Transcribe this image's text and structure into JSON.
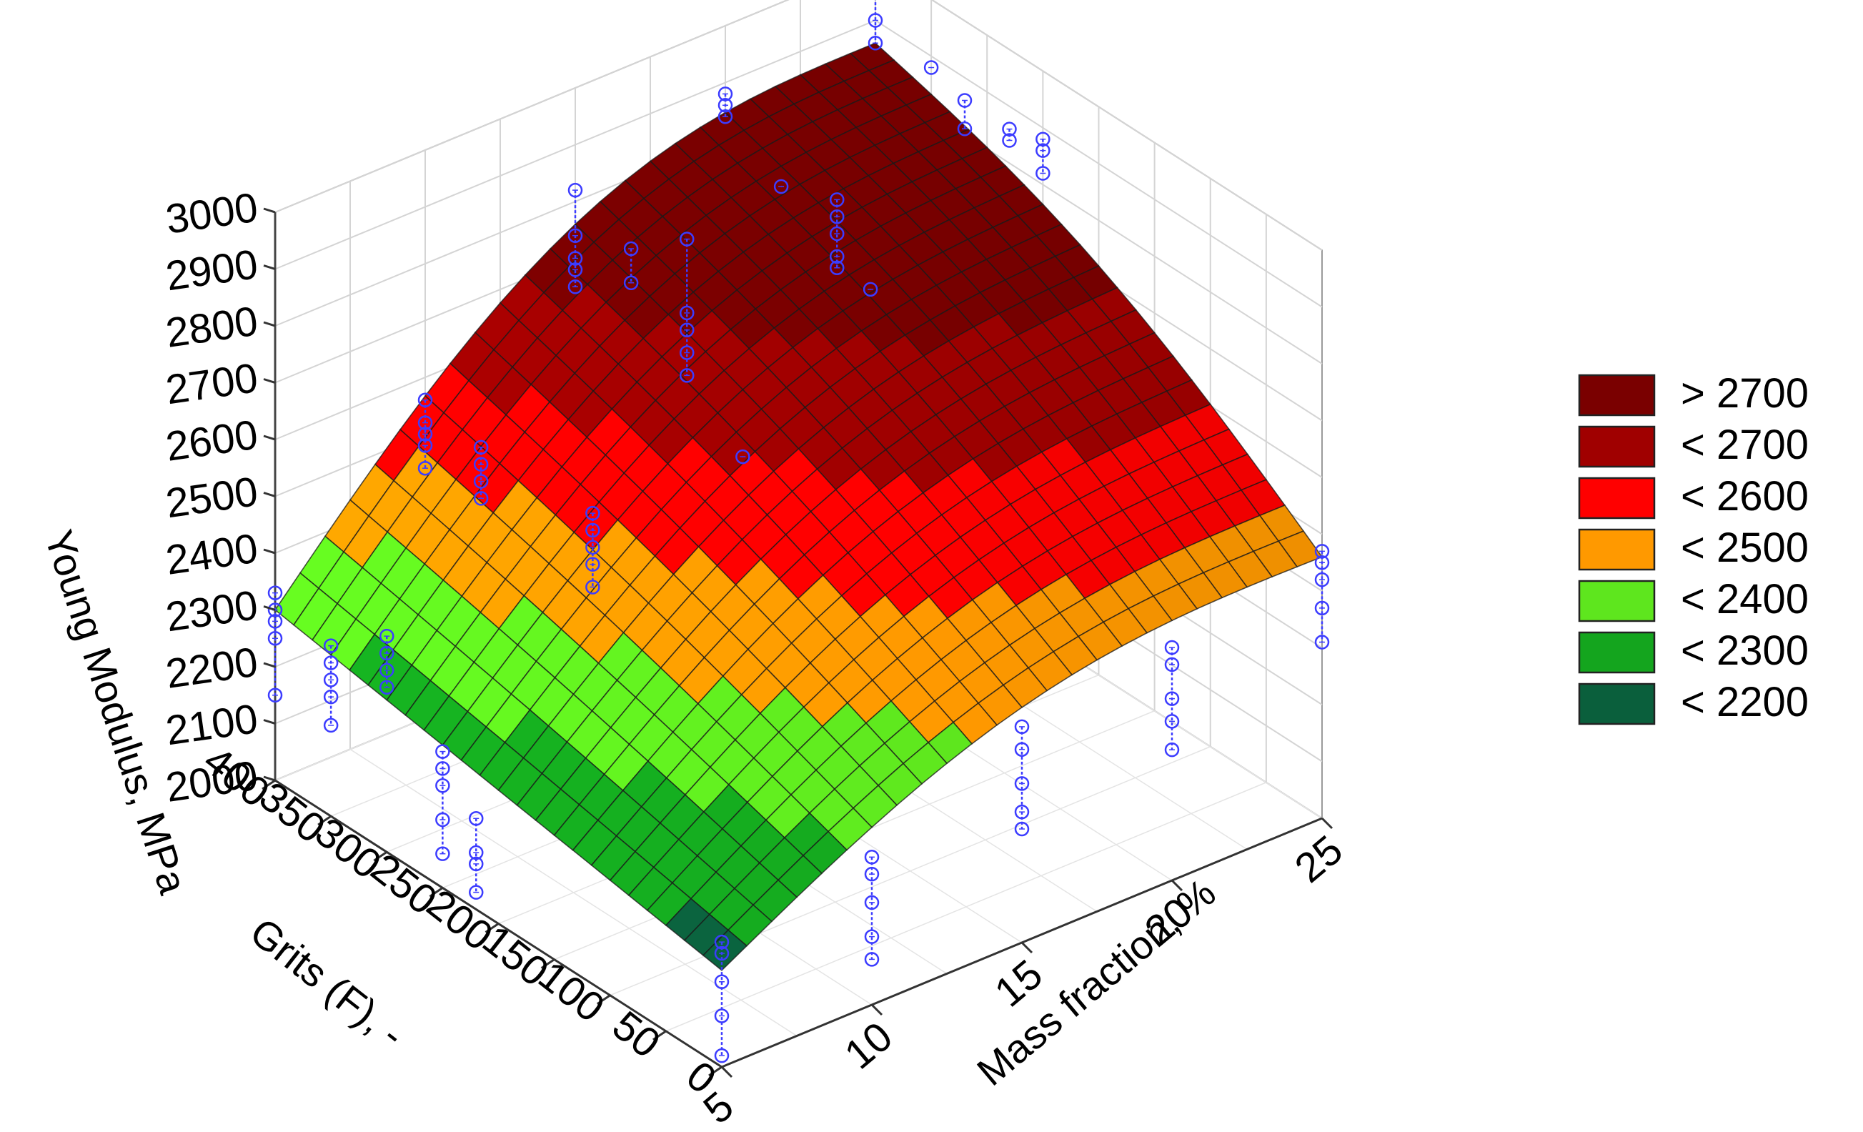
{
  "chart_data": {
    "type": "surface3d",
    "z_axis": {
      "label": "Young Modulus, MPa",
      "range": [
        2000,
        3000
      ],
      "ticks": [
        "2000",
        "2100",
        "2200",
        "2300",
        "2400",
        "2500",
        "2600",
        "2700",
        "2800",
        "2900",
        "3000"
      ]
    },
    "grits_axis": {
      "label": "Grits (F), -",
      "range": [
        0,
        400
      ],
      "ticks": [
        "0",
        "50",
        "100",
        "150",
        "200",
        "250",
        "300",
        "350",
        "400"
      ]
    },
    "mass_axis": {
      "label": "Mass fraction, %",
      "range": [
        5,
        25
      ],
      "ticks": [
        "5",
        "10",
        "15",
        "20",
        "25"
      ]
    },
    "corner_values": [
      {
        "grits": 400,
        "mass": 5,
        "young_modulus": 2300
      },
      {
        "grits": 0,
        "mass": 5,
        "young_modulus": 2170
      },
      {
        "grits": 400,
        "mass": 25,
        "young_modulus": 2860
      },
      {
        "grits": 0,
        "mass": 25,
        "young_modulus": 2460
      }
    ],
    "legend": [
      {
        "label": "> 2700",
        "color": "#7a0000"
      },
      {
        "label": "< 2700",
        "color": "#a00000"
      },
      {
        "label": "< 2600",
        "color": "#ff0000"
      },
      {
        "label": "< 2500",
        "color": "#ff9900"
      },
      {
        "label": "< 2400",
        "color": "#5ee61e"
      },
      {
        "label": "< 2300",
        "color": "#14a51e"
      },
      {
        "label": "< 2200",
        "color": "#0a5f3c"
      }
    ],
    "observation_color": "#3c3cff",
    "observations": [
      {
        "grits": 400,
        "mass": 5,
        "values": [
          2330,
          2300,
          2280,
          2250,
          2150
        ]
      },
      {
        "grits": 350,
        "mass": 5,
        "values": [
          2300,
          2270,
          2240,
          2210,
          2160
        ]
      },
      {
        "grits": 300,
        "mass": 5,
        "values": [
          2380,
          2350,
          2320,
          2290
        ]
      },
      {
        "grits": 250,
        "mass": 5,
        "values": [
          2240,
          2210,
          2180,
          2120,
          2060
        ]
      },
      {
        "grits": 220,
        "mass": 5,
        "values": [
          2160,
          2100,
          2080,
          2030
        ]
      },
      {
        "grits": 400,
        "mass": 10,
        "values": [
          2560,
          2520,
          2500,
          2480,
          2440
        ]
      },
      {
        "grits": 350,
        "mass": 10,
        "values": [
          2540,
          2510,
          2480,
          2450
        ]
      },
      {
        "grits": 250,
        "mass": 10,
        "values": [
          2550,
          2520,
          2490,
          2460,
          2420
        ]
      },
      {
        "grits": 400,
        "mass": 15,
        "values": [
          2820,
          2740,
          2700,
          2680,
          2650
        ]
      },
      {
        "grits": 350,
        "mass": 15,
        "values": [
          2780,
          2720
        ]
      },
      {
        "grits": 300,
        "mass": 15,
        "values": [
          2860,
          2730,
          2700,
          2660,
          2620
        ]
      },
      {
        "grits": 250,
        "mass": 15,
        "values": [
          2540
        ]
      },
      {
        "grits": 400,
        "mass": 20,
        "values": [
          2880,
          2860,
          2840
        ]
      },
      {
        "grits": 350,
        "mass": 20,
        "values": [
          2780
        ]
      },
      {
        "grits": 300,
        "mass": 20,
        "values": [
          2820,
          2790,
          2760,
          2720,
          2700
        ]
      },
      {
        "grits": 270,
        "mass": 20,
        "values": [
          2700
        ]
      },
      {
        "grits": 400,
        "mass": 25,
        "values": [
          3020,
          2980,
          2950,
          2900,
          2860
        ]
      },
      {
        "grits": 350,
        "mass": 25,
        "values": [
          2880
        ]
      },
      {
        "grits": 320,
        "mass": 25,
        "values": [
          2860,
          2810
        ]
      },
      {
        "grits": 280,
        "mass": 25,
        "values": [
          2860,
          2840
        ]
      },
      {
        "grits": 250,
        "mass": 25,
        "values": [
          2880,
          2860,
          2820
        ]
      },
      {
        "grits": 0,
        "mass": 5,
        "values": [
          2220,
          2200,
          2150,
          2090,
          2020
        ]
      },
      {
        "grits": 0,
        "mass": 10,
        "values": [
          2260,
          2230,
          2180,
          2120,
          2080
        ]
      },
      {
        "grits": 0,
        "mass": 15,
        "values": [
          2380,
          2340,
          2280,
          2230,
          2200
        ]
      },
      {
        "grits": 0,
        "mass": 20,
        "values": [
          2410,
          2380,
          2320,
          2280,
          2230
        ]
      },
      {
        "grits": 0,
        "mass": 25,
        "values": [
          2470,
          2450,
          2420,
          2370,
          2310
        ]
      }
    ]
  }
}
